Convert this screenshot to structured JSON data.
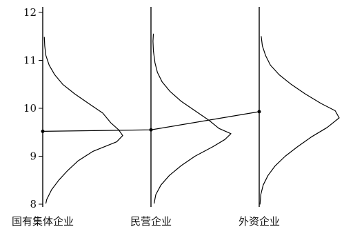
{
  "chart_data": {
    "type": "line",
    "title": "",
    "xlabel": "",
    "ylabel": "",
    "categories": [
      "国有集体企业",
      "民营企业",
      "外资企业"
    ],
    "ylim": [
      8,
      12
    ],
    "y_ticks": [
      8,
      9,
      10,
      11,
      12
    ],
    "grid": false,
    "legend": "none",
    "colors": {
      "line": "#000000",
      "text": "#111111",
      "background": "#ffffff"
    },
    "series": [
      {
        "type": "line",
        "values": [
          9.52,
          9.55,
          9.93
        ]
      }
    ],
    "distributions": [
      {
        "category": "国有集体企业",
        "mode": 9.43,
        "y_range": [
          8.02,
          11.48
        ],
        "points": [
          [
            8.02,
            0.08
          ],
          [
            8.1,
            0.1
          ],
          [
            8.3,
            0.22
          ],
          [
            8.5,
            0.4
          ],
          [
            8.7,
            0.62
          ],
          [
            8.9,
            0.88
          ],
          [
            9.1,
            1.25
          ],
          [
            9.3,
            1.85
          ],
          [
            9.43,
            2.0
          ],
          [
            9.55,
            1.9
          ],
          [
            9.7,
            1.7
          ],
          [
            9.9,
            1.5
          ],
          [
            10.1,
            1.15
          ],
          [
            10.3,
            0.8
          ],
          [
            10.5,
            0.5
          ],
          [
            10.7,
            0.3
          ],
          [
            10.9,
            0.16
          ],
          [
            11.1,
            0.08
          ],
          [
            11.3,
            0.05
          ],
          [
            11.48,
            0.04
          ]
        ]
      },
      {
        "category": "民营企业",
        "mode": 9.47,
        "y_range": [
          8.02,
          11.55
        ],
        "points": [
          [
            8.02,
            0.08
          ],
          [
            8.2,
            0.12
          ],
          [
            8.4,
            0.25
          ],
          [
            8.6,
            0.46
          ],
          [
            8.8,
            0.75
          ],
          [
            9.0,
            1.1
          ],
          [
            9.2,
            1.55
          ],
          [
            9.35,
            1.85
          ],
          [
            9.47,
            2.0
          ],
          [
            9.58,
            1.7
          ],
          [
            9.75,
            1.45
          ],
          [
            9.95,
            1.1
          ],
          [
            10.15,
            0.75
          ],
          [
            10.35,
            0.48
          ],
          [
            10.55,
            0.28
          ],
          [
            10.75,
            0.16
          ],
          [
            10.95,
            0.1
          ],
          [
            11.2,
            0.06
          ],
          [
            11.4,
            0.05
          ],
          [
            11.55,
            0.06
          ]
        ]
      },
      {
        "category": "外资企业",
        "mode": 9.8,
        "y_range": [
          8.0,
          11.5
        ],
        "points": [
          [
            8.0,
            0.02
          ],
          [
            8.2,
            0.04
          ],
          [
            8.4,
            0.1
          ],
          [
            8.6,
            0.22
          ],
          [
            8.8,
            0.4
          ],
          [
            9.0,
            0.65
          ],
          [
            9.2,
            0.96
          ],
          [
            9.4,
            1.3
          ],
          [
            9.6,
            1.7
          ],
          [
            9.8,
            2.0
          ],
          [
            9.95,
            1.9
          ],
          [
            10.1,
            1.55
          ],
          [
            10.3,
            1.15
          ],
          [
            10.5,
            0.8
          ],
          [
            10.7,
            0.5
          ],
          [
            10.9,
            0.28
          ],
          [
            11.1,
            0.16
          ],
          [
            11.3,
            0.08
          ],
          [
            11.5,
            0.05
          ]
        ]
      }
    ]
  }
}
